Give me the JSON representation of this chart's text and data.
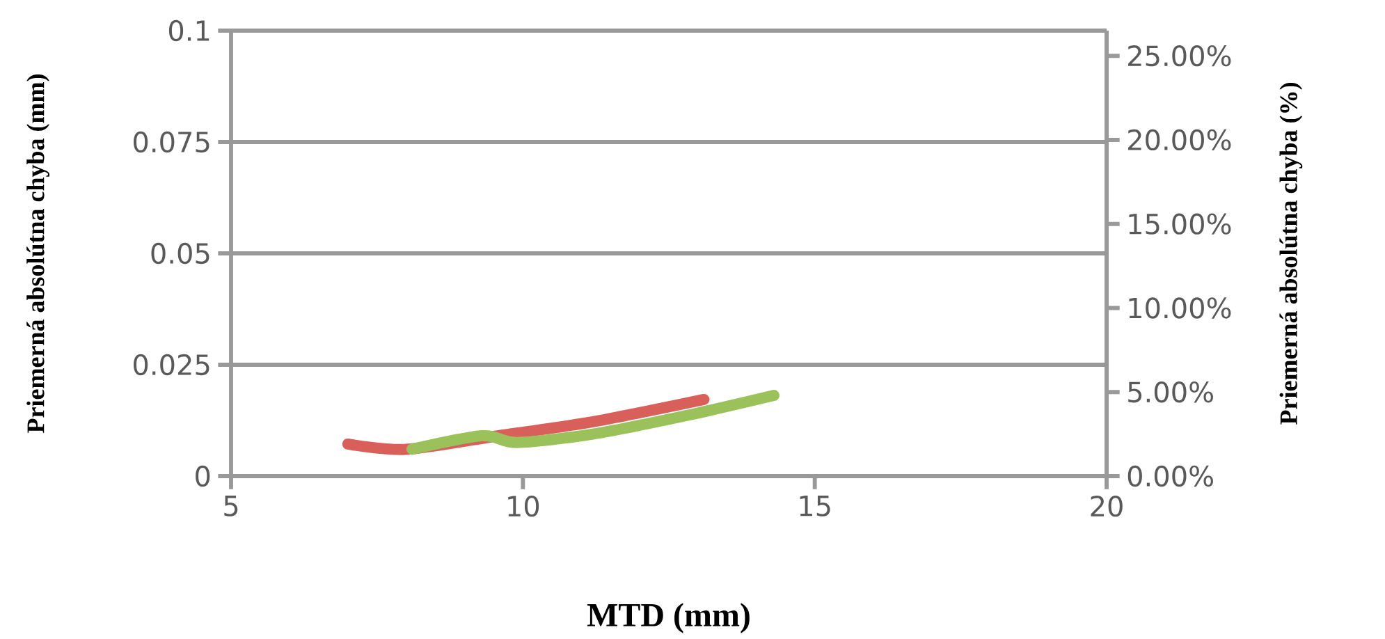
{
  "chart_data": {
    "type": "line",
    "xlabel": "MTD (mm)",
    "ylabel": "Priemerná absolútna chyba (mm)",
    "y2label": "Priemerná absolútna chyba (%)",
    "xlim": [
      5,
      20
    ],
    "xticks": [
      5,
      10,
      15,
      20
    ],
    "ylim": [
      0,
      0.1
    ],
    "yticks": [
      0,
      0.025,
      0.05,
      0.075,
      0.1
    ],
    "y2lim": [
      0,
      26.5
    ],
    "y2ticks": [
      {
        "value": 0,
        "label": "0.00%"
      },
      {
        "value": 5,
        "label": "5.00%"
      },
      {
        "value": 10,
        "label": "10.00%"
      },
      {
        "value": 15,
        "label": "15.00%"
      },
      {
        "value": 20,
        "label": "20.00%"
      },
      {
        "value": 25,
        "label": "25.00%"
      }
    ],
    "grid": "y",
    "series": [
      {
        "color": "#d9605a",
        "x": [
          7.0,
          8.0,
          9.6,
          11.2,
          13.1
        ],
        "values": [
          0.0072,
          0.006,
          0.0091,
          0.0122,
          0.0172
        ]
      },
      {
        "color": "#9bc25a",
        "axis": "y2",
        "x": [
          8.1,
          9.3,
          9.9,
          11.2,
          12.8,
          14.3
        ],
        "values": [
          1.6,
          2.4,
          2.0,
          2.5,
          3.6,
          4.8
        ]
      }
    ]
  }
}
